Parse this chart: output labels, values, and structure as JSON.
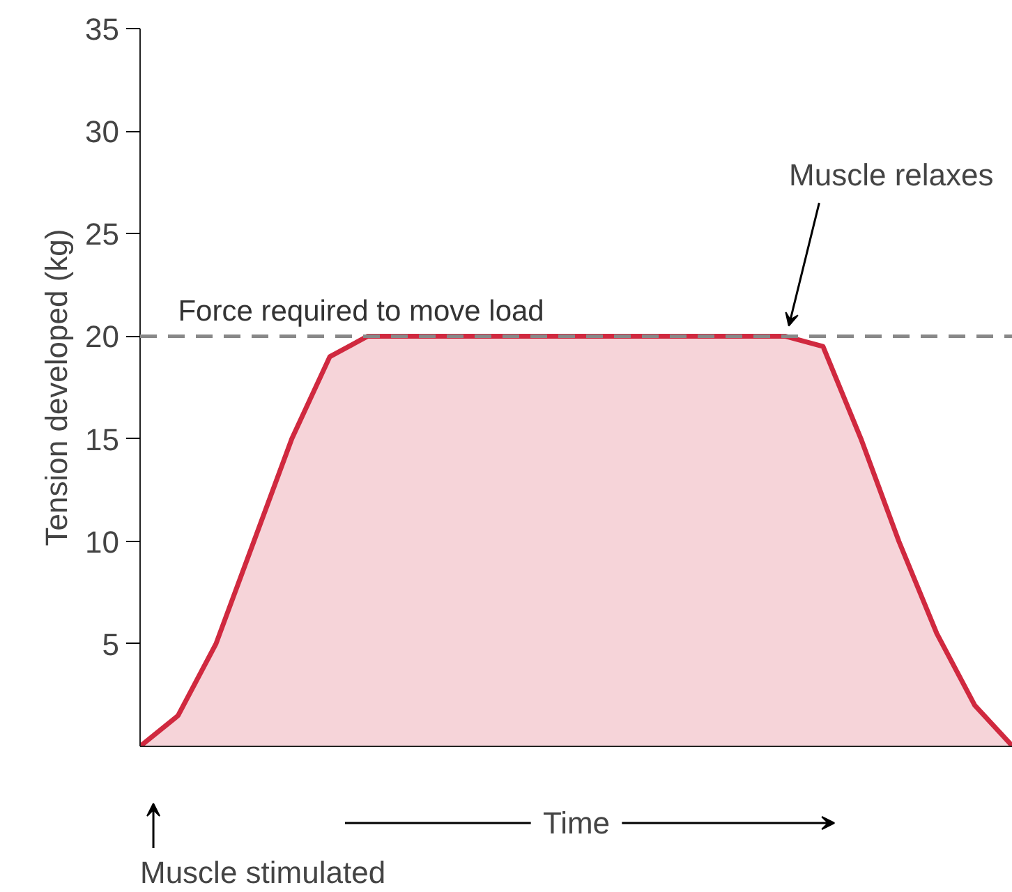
{
  "chart_data": {
    "type": "area",
    "ylabel": "Tension developed (kg)",
    "xlabel": "Time",
    "categories": [
      null,
      null,
      null,
      null,
      null,
      null,
      null,
      null,
      null,
      null,
      null,
      null,
      null,
      null,
      null,
      null,
      null,
      null,
      null,
      null,
      null,
      null,
      null,
      null
    ],
    "series": [
      {
        "color": "#d0293f",
        "values": [
          0,
          1.5,
          5,
          10,
          15,
          19,
          20,
          20,
          20,
          20,
          20,
          20,
          20,
          20,
          20,
          20,
          20,
          20,
          19.5,
          15,
          10,
          5.5,
          2,
          0
        ]
      }
    ],
    "ylim": [
      0,
      35
    ],
    "yticks": [
      5,
      10,
      15,
      20,
      25,
      30,
      35
    ],
    "tick_labels": "y",
    "grid": false,
    "ref_lines": [
      {
        "axis": "y",
        "value": 20,
        "label": "Force required to move load",
        "line_style": "dashed",
        "color": "#888888"
      }
    ],
    "annotations": [
      "Muscle stimulated",
      "Muscle relaxes"
    ]
  }
}
